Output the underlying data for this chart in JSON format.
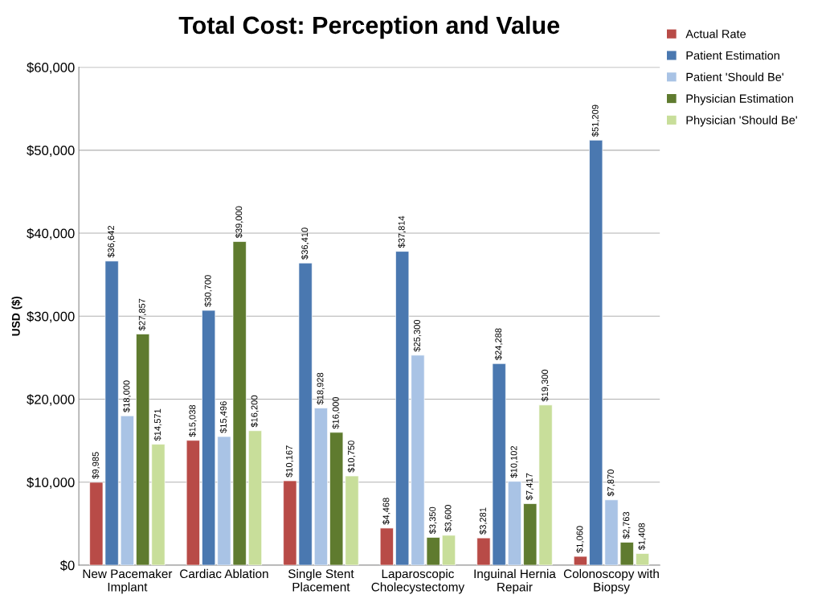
{
  "chart_data": {
    "type": "bar",
    "title": "Total Cost: Perception and Value",
    "ylabel": "USD ($)",
    "categories": [
      "New Pacemaker\nImplant",
      "Cardiac Ablation",
      "Single Stent\nPlacement",
      "Laparoscopic\nCholecystectomy",
      "Inguinal Hernia\nRepair",
      "Colonoscopy with\nBiopsy"
    ],
    "series": [
      {
        "name": "Actual Rate",
        "color": "#b84b47",
        "values": [
          9985,
          15038,
          10167,
          4468,
          3281,
          1060
        ],
        "value_labels": [
          "$9,985",
          "$15,038",
          "$10,167",
          "$4,468",
          "$3,281",
          "$1,060"
        ]
      },
      {
        "name": "Patient Estimation",
        "color": "#4a78b0",
        "values": [
          36642,
          30700,
          36410,
          37814,
          24288,
          51209
        ],
        "value_labels": [
          "$36,642",
          "$30,700",
          "$36,410",
          "$37,814",
          "$24,288",
          "$51,209"
        ]
      },
      {
        "name": "Patient 'Should Be'",
        "color": "#a9c3e5",
        "values": [
          18000,
          15496,
          18928,
          25300,
          10102,
          7870
        ],
        "value_labels": [
          "$18,000",
          "$15,496",
          "$18,928",
          "$25,300",
          "$10,102",
          "$7,870"
        ]
      },
      {
        "name": "Physician Estimation",
        "color": "#5f7b2f",
        "values": [
          27857,
          39000,
          16000,
          3350,
          7417,
          2763
        ],
        "value_labels": [
          "$27,857",
          "$39,000",
          "$16,000",
          "$3,350",
          "$7,417",
          "$2,763"
        ]
      },
      {
        "name": "Physician 'Should Be'",
        "color": "#c8de9a",
        "values": [
          14571,
          16200,
          10750,
          3600,
          19300,
          1408
        ],
        "value_labels": [
          "$14,571",
          "$16,200",
          "$10,750",
          "$3,600",
          "$19,300",
          "$1,408"
        ]
      }
    ],
    "ylim": [
      0,
      60000
    ],
    "yticks": [
      {
        "value": 0,
        "label": "$0"
      },
      {
        "value": 10000,
        "label": "$10,000"
      },
      {
        "value": 20000,
        "label": "$20,000"
      },
      {
        "value": 30000,
        "label": "$30,000"
      },
      {
        "value": 40000,
        "label": "$40,000"
      },
      {
        "value": 50000,
        "label": "$50,000"
      },
      {
        "value": 60000,
        "label": "$60,000"
      }
    ],
    "grid": "y",
    "legend": "top right"
  }
}
